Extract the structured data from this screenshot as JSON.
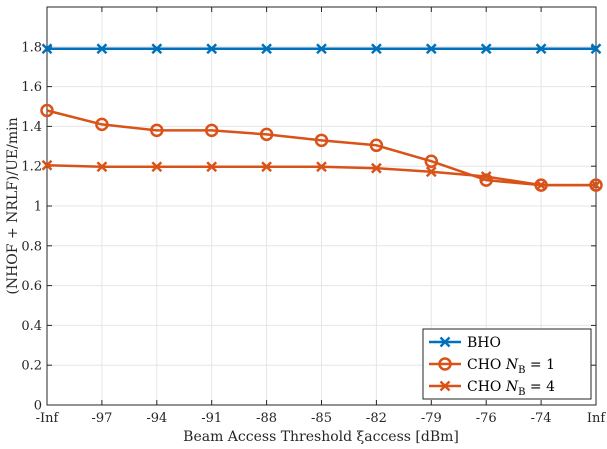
{
  "chart_data": {
    "type": "line",
    "xlabel": "Beam Access Threshold ξaccess [dBm]",
    "ylabel": "(NHOF + NRLF)/UE/min",
    "categories": [
      "-Inf",
      "-97",
      "-94",
      "-91",
      "-88",
      "-85",
      "-82",
      "-79",
      "-76",
      "-74",
      "Inf"
    ],
    "ylim": [
      0,
      2
    ],
    "yticks": [
      "0",
      "0.2",
      "0.4",
      "0.6",
      "0.8",
      "1",
      "1.2",
      "1.4",
      "1.6",
      "1.8"
    ],
    "grid": true,
    "legend_position": "bottom-right",
    "series": [
      {
        "name": "BHO",
        "color": "#0072BD",
        "marker": "x",
        "values": [
          1.79,
          1.79,
          1.79,
          1.79,
          1.79,
          1.79,
          1.79,
          1.79,
          1.79,
          1.79,
          1.79
        ]
      },
      {
        "name": "CHO NB = 1",
        "color": "#D95319",
        "marker": "o",
        "values": [
          1.48,
          1.41,
          1.38,
          1.38,
          1.36,
          1.33,
          1.305,
          1.225,
          1.13,
          1.105,
          1.105
        ]
      },
      {
        "name": "CHO NB = 4",
        "color": "#D95319",
        "marker": "x",
        "values": [
          1.205,
          1.197,
          1.197,
          1.197,
          1.197,
          1.197,
          1.19,
          1.172,
          1.148,
          1.105,
          1.105
        ]
      }
    ]
  }
}
